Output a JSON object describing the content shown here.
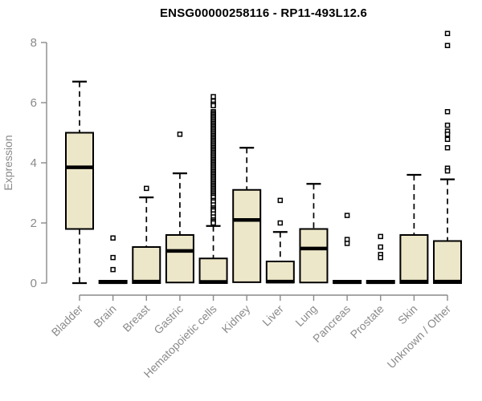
{
  "title": "ENSG00000258116 - RP11-493L12.6",
  "chart_data": {
    "type": "boxplot",
    "title": "ENSG00000258116 - RP11-493L12.6",
    "xlabel": "",
    "ylabel": "Expression",
    "ylim": [
      0,
      8
    ],
    "yticks": [
      0,
      2,
      4,
      6,
      8
    ],
    "grid": false,
    "legend": "none",
    "colors": {
      "box_fill": "#EDE7C9",
      "box_stroke": "#000000",
      "axis": "#8a8a8a",
      "title": "#000000"
    },
    "categories": [
      "Bladder",
      "Brain",
      "Breast",
      "Gastric",
      "Hematopoietic cells",
      "Kidney",
      "Liver",
      "Lung",
      "Pancreas",
      "Prostate",
      "Skin",
      "Unknown / Other"
    ],
    "series": [
      {
        "category": "Bladder",
        "whisker_low": 0,
        "q1": 1.8,
        "median": 3.85,
        "q3": 5.0,
        "whisker_high": 6.7,
        "outliers": []
      },
      {
        "category": "Brain",
        "whisker_low": 0,
        "q1": 0,
        "median": 0.03,
        "q3": 0.08,
        "whisker_high": 0.08,
        "outliers": [
          1.5,
          0.85,
          0.45
        ]
      },
      {
        "category": "Breast",
        "whisker_low": 0,
        "q1": 0,
        "median": 0.05,
        "q3": 1.2,
        "whisker_high": 2.85,
        "outliers": [
          3.15
        ]
      },
      {
        "category": "Gastric",
        "whisker_low": 0.02,
        "q1": 0.02,
        "median": 1.07,
        "q3": 1.6,
        "whisker_high": 3.65,
        "outliers": [
          4.95
        ]
      },
      {
        "category": "Hematopoietic cells",
        "whisker_low": 0,
        "q1": 0,
        "median": 0.04,
        "q3": 0.82,
        "whisker_high": 1.9,
        "outliers": [
          6.2,
          6.05,
          5.95,
          5.9,
          5.7,
          5.65,
          5.6,
          5.55,
          5.5,
          5.45,
          5.4,
          5.35,
          5.3,
          5.25,
          5.2,
          5.15,
          5.1,
          5.05,
          5.0,
          4.95,
          4.9,
          4.85,
          4.8,
          4.75,
          4.7,
          4.65,
          4.6,
          4.55,
          4.5,
          4.45,
          4.4,
          4.35,
          4.3,
          4.25,
          4.2,
          4.15,
          4.1,
          4.05,
          4.0,
          3.95,
          3.9,
          3.85,
          3.8,
          3.75,
          3.7,
          3.65,
          3.6,
          3.55,
          3.5,
          3.45,
          3.4,
          3.35,
          3.3,
          3.25,
          3.2,
          3.15,
          3.1,
          3.05,
          3.0,
          2.95,
          2.9,
          2.85,
          2.75,
          2.7,
          2.6,
          2.5,
          2.45,
          2.4,
          2.3,
          2.2,
          2.1,
          2.05,
          2.0
        ]
      },
      {
        "category": "Kidney",
        "whisker_low": 0,
        "q1": 0.03,
        "median": 2.1,
        "q3": 3.1,
        "whisker_high": 4.5,
        "outliers": []
      },
      {
        "category": "Liver",
        "whisker_low": 0,
        "q1": 0.02,
        "median": 0.05,
        "q3": 0.72,
        "whisker_high": 1.7,
        "outliers": [
          2.75,
          2.0
        ]
      },
      {
        "category": "Lung",
        "whisker_low": 0.02,
        "q1": 0.02,
        "median": 1.15,
        "q3": 1.8,
        "whisker_high": 3.3,
        "outliers": []
      },
      {
        "category": "Pancreas",
        "whisker_low": 0,
        "q1": 0,
        "median": 0.03,
        "q3": 0.08,
        "whisker_high": 0.08,
        "outliers": [
          2.25,
          1.45,
          1.32
        ]
      },
      {
        "category": "Prostate",
        "whisker_low": 0,
        "q1": 0,
        "median": 0.03,
        "q3": 0.08,
        "whisker_high": 0.08,
        "outliers": [
          1.55,
          1.2,
          0.95,
          0.85
        ]
      },
      {
        "category": "Skin",
        "whisker_low": 0,
        "q1": 0,
        "median": 0.05,
        "q3": 1.6,
        "whisker_high": 3.6,
        "outliers": []
      },
      {
        "category": "Unknown / Other",
        "whisker_low": 0,
        "q1": 0,
        "median": 0.05,
        "q3": 1.4,
        "whisker_high": 3.45,
        "outliers": [
          8.3,
          7.9,
          5.7,
          5.25,
          5.05,
          4.95,
          4.78,
          4.5,
          3.82,
          3.73
        ]
      }
    ]
  }
}
